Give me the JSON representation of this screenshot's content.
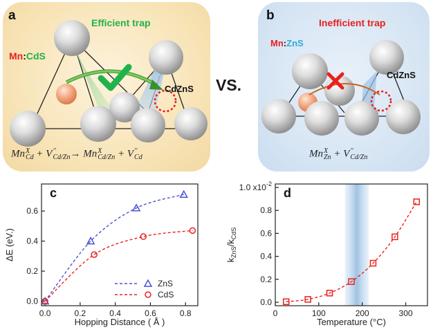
{
  "panel_a": {
    "letter": "a",
    "title": "Efficient trap",
    "dopant": "Mn",
    "sep": ":",
    "host": "CdS",
    "alloy": "CdZnS",
    "eq_mn": "Mn",
    "eq_mn_sub": "Cd",
    "eq_mn_sup": "X",
    "eq_v": "V",
    "eq_v_sub": "Cd/Zn",
    "eq_v_sup": "′′",
    "eq_arrow": "→",
    "eq_rmn": "Mn",
    "eq_rmn_sub": "Cd/Zn",
    "eq_rmn_sup": "X",
    "eq_rv": "V",
    "eq_rv_sub": "Cd",
    "eq_rv_sup": "′′",
    "plus": "+"
  },
  "vs": "VS.",
  "panel_b": {
    "letter": "b",
    "title": "Inefficient trap",
    "dopant": "Mn",
    "sep": ":",
    "host": "ZnS",
    "alloy": "CdZnS",
    "eq_mn": "Mn",
    "eq_mn_sub": "Zn",
    "eq_mn_sup": "X",
    "eq_v": "V",
    "eq_v_sub": "Cd/Zn",
    "eq_v_sup": "′′",
    "plus": "+"
  },
  "colors": {
    "green": "#22b24c",
    "red": "#e8201e",
    "blue_series": "#4a52d6",
    "red_series": "#e8201e",
    "cyan": "#33a9dc",
    "band": "#8fb8de"
  },
  "chart_data": [
    {
      "panel": "c",
      "type": "scatter",
      "xlabel": "Hopping Distance ( Å )",
      "ylabel": "ΔE (eV.)",
      "xlim": [
        -0.02,
        0.87
      ],
      "ylim": [
        -0.03,
        0.78
      ],
      "xticks": [
        "0.0",
        "0.2",
        "0.4",
        "0.6",
        "0.8"
      ],
      "xtick_values": [
        0.0,
        0.2,
        0.4,
        0.6,
        0.8
      ],
      "yticks": [
        "0.0",
        "0.2",
        "0.4",
        "0.6"
      ],
      "ytick_values": [
        0.0,
        0.2,
        0.4,
        0.6
      ],
      "legend_position": "bottom-right",
      "series": [
        {
          "name": "ZnS",
          "marker": "triangle",
          "line": "dashed",
          "color": "#4a52d6",
          "x": [
            0.0,
            0.26,
            0.52,
            0.79
          ],
          "y": [
            0.0,
            0.4,
            0.62,
            0.71
          ]
        },
        {
          "name": "CdS",
          "marker": "circle",
          "line": "dashed",
          "color": "#e8201e",
          "x": [
            0.0,
            0.28,
            0.56,
            0.84
          ],
          "y": [
            0.0,
            0.31,
            0.43,
            0.47
          ]
        }
      ]
    },
    {
      "panel": "d",
      "type": "scatter",
      "xlabel": "Temperature (°C)",
      "ylabel": "kZnS/kCdS",
      "xlim": [
        0,
        350
      ],
      "ylim": [
        -0.03,
        1.03
      ],
      "xticks": [
        "0",
        "100",
        "200",
        "300"
      ],
      "xtick_values": [
        0,
        100,
        200,
        300
      ],
      "yticks": [
        "0.0",
        "0.2",
        "0.4",
        "0.6",
        "0.8",
        "1.0 x10"
      ],
      "ytick_values": [
        0.0,
        0.2,
        0.4,
        0.6,
        0.8,
        1.0
      ],
      "y_exponent": "-2",
      "shaded_band_x": [
        160,
        215
      ],
      "series": [
        {
          "marker": "square",
          "line": "dashed",
          "color": "#e8201e",
          "x": [
            25,
            75,
            125,
            175,
            225,
            275,
            325
          ],
          "y": [
            0.005,
            0.025,
            0.08,
            0.18,
            0.34,
            0.57,
            0.875
          ]
        }
      ]
    }
  ]
}
